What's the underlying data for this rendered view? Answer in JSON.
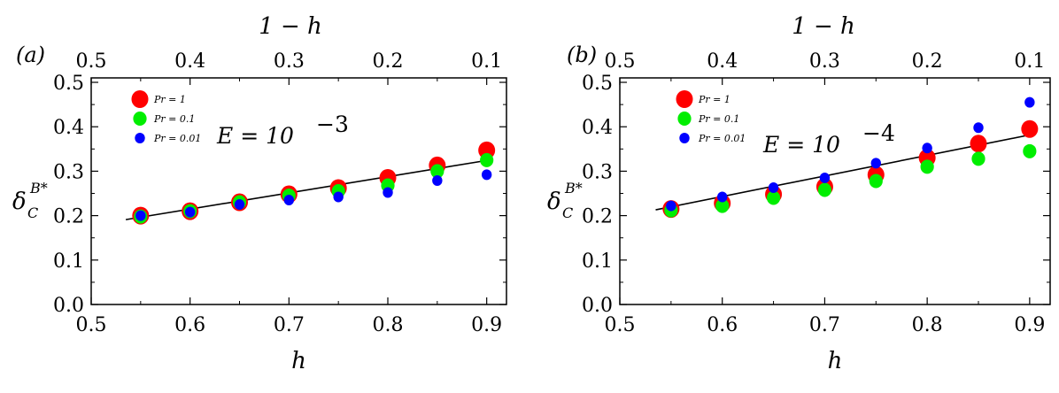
{
  "chart_data": [
    {
      "type": "scatter",
      "panel_label": "(a)",
      "annotation": {
        "base": "E = 10",
        "exponent": "−3"
      },
      "xlabel": "h",
      "top_xlabel": "1 − h",
      "ylabel": {
        "main": "δ",
        "sub": "C",
        "sup": "B*"
      },
      "xlim": [
        0.5,
        0.92
      ],
      "ylim": [
        0.0,
        0.51
      ],
      "x_ticks": [
        "0.5",
        "0.6",
        "0.7",
        "0.8",
        "0.9"
      ],
      "y_ticks": [
        "0.0",
        "0.1",
        "0.2",
        "0.3",
        "0.4",
        "0.5"
      ],
      "top_ticks": [
        "0.5",
        "0.4",
        "0.3",
        "0.2",
        "0.1"
      ],
      "legend_position": "top-left",
      "series": [
        {
          "name": "Pr = 1",
          "color": "#ff0000",
          "x": [
            0.55,
            0.6,
            0.65,
            0.7,
            0.75,
            0.8,
            0.85,
            0.9
          ],
          "values": [
            0.2,
            0.21,
            0.23,
            0.248,
            0.262,
            0.285,
            0.313,
            0.347
          ]
        },
        {
          "name": "Pr = 0.1",
          "color": "#00ee00",
          "x": [
            0.55,
            0.6,
            0.65,
            0.7,
            0.75,
            0.8,
            0.85,
            0.9
          ],
          "values": [
            0.198,
            0.21,
            0.23,
            0.245,
            0.255,
            0.268,
            0.3,
            0.325
          ]
        },
        {
          "name": "Pr = 0.01",
          "color": "#0000ff",
          "x": [
            0.55,
            0.6,
            0.65,
            0.7,
            0.75,
            0.8,
            0.85,
            0.9
          ],
          "values": [
            0.2,
            0.208,
            0.225,
            0.235,
            0.242,
            0.252,
            0.279,
            0.292
          ]
        }
      ],
      "fit_line": {
        "x": [
          0.535,
          0.905
        ],
        "values": [
          0.191,
          0.326
        ]
      }
    },
    {
      "type": "scatter",
      "panel_label": "(b)",
      "annotation": {
        "base": "E = 10",
        "exponent": "−4"
      },
      "xlabel": "h",
      "top_xlabel": "1 − h",
      "ylabel": {
        "main": "δ",
        "sub": "C",
        "sup": "B*"
      },
      "xlim": [
        0.5,
        0.92
      ],
      "ylim": [
        0.0,
        0.51
      ],
      "x_ticks": [
        "0.5",
        "0.6",
        "0.7",
        "0.8",
        "0.9"
      ],
      "y_ticks": [
        "0.0",
        "0.1",
        "0.2",
        "0.3",
        "0.4",
        "0.5"
      ],
      "top_ticks": [
        "0.5",
        "0.4",
        "0.3",
        "0.2",
        "0.1"
      ],
      "legend_position": "top-left",
      "series": [
        {
          "name": "Pr = 1",
          "color": "#ff0000",
          "x": [
            0.55,
            0.6,
            0.65,
            0.7,
            0.75,
            0.8,
            0.85,
            0.9
          ],
          "values": [
            0.215,
            0.228,
            0.248,
            0.265,
            0.292,
            0.33,
            0.362,
            0.395
          ]
        },
        {
          "name": "Pr = 0.1",
          "color": "#00ee00",
          "x": [
            0.55,
            0.6,
            0.65,
            0.7,
            0.75,
            0.8,
            0.85,
            0.9
          ],
          "values": [
            0.212,
            0.222,
            0.24,
            0.258,
            0.278,
            0.31,
            0.328,
            0.345
          ]
        },
        {
          "name": "Pr = 0.01",
          "color": "#0000ff",
          "x": [
            0.55,
            0.6,
            0.65,
            0.7,
            0.75,
            0.8,
            0.85,
            0.9
          ],
          "values": [
            0.222,
            0.242,
            0.263,
            0.285,
            0.318,
            0.352,
            0.398,
            0.455
          ]
        }
      ],
      "fit_line": {
        "x": [
          0.535,
          0.905
        ],
        "values": [
          0.213,
          0.384
        ]
      }
    }
  ]
}
